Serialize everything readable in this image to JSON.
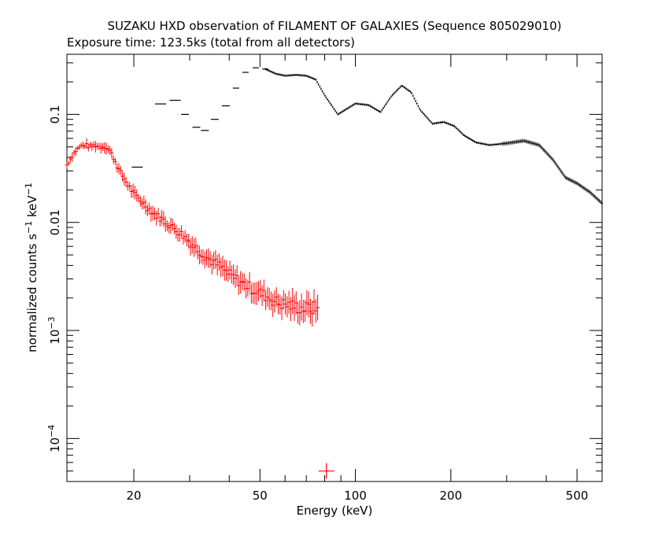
{
  "chart_data": {
    "type": "scatter",
    "title": "SUZAKU HXD observation of FILAMENT OF GALAXIES (Sequence 805029010)",
    "subtitle": "Exposure time: 123.5ks (total from all detectors)",
    "xlabel": "Energy (keV)",
    "ylabel": {
      "base": "normalized counts s",
      "sup1": "−1",
      "mid": " keV",
      "sup2": "−1"
    },
    "x_scale": "log",
    "y_scale": "log",
    "xlim": [
      12.3,
      600
    ],
    "ylim": [
      4e-05,
      0.36
    ],
    "grid": false,
    "x_ticks": [
      {
        "value": 20,
        "label": "20"
      },
      {
        "value": 50,
        "label": "50"
      },
      {
        "value": 100,
        "label": "100"
      },
      {
        "value": 200,
        "label": "200"
      },
      {
        "value": 500,
        "label": "500"
      }
    ],
    "y_ticks": [
      {
        "value": 0.1,
        "label": "0.1"
      },
      {
        "value": 0.01,
        "label": "0.01"
      },
      {
        "value": 0.001,
        "base": "10",
        "exp": "−3"
      },
      {
        "value": 0.0001,
        "base": "10",
        "exp": "−4"
      }
    ],
    "colors": {
      "series1": "#000000",
      "series2": "#ff0000"
    },
    "series": [
      {
        "color": "#000000",
        "points": [
          [
            20.5,
            0.0325
          ],
          [
            24.3,
            0.125
          ],
          [
            27.0,
            0.135
          ],
          [
            29.0,
            0.1
          ],
          [
            31.5,
            0.076
          ],
          [
            33.5,
            0.071
          ],
          [
            36.0,
            0.09
          ],
          [
            39.0,
            0.12
          ],
          [
            42.0,
            0.175
          ],
          [
            45.0,
            0.245
          ],
          [
            48.5,
            0.27
          ],
          [
            52.0,
            0.263
          ],
          [
            56.0,
            0.238
          ],
          [
            60.0,
            0.228
          ],
          [
            65.0,
            0.232
          ],
          [
            70.0,
            0.228
          ],
          [
            75.0,
            0.21
          ],
          [
            80.0,
            0.15
          ],
          [
            88.0,
            0.1
          ],
          [
            100.0,
            0.126
          ],
          [
            110.0,
            0.122
          ],
          [
            120.0,
            0.105
          ],
          [
            130.0,
            0.148
          ],
          [
            140.0,
            0.185
          ],
          [
            150.0,
            0.16
          ],
          [
            160.0,
            0.11
          ],
          [
            175.0,
            0.082
          ],
          [
            190.0,
            0.085
          ],
          [
            205.0,
            0.078
          ],
          [
            220.0,
            0.064
          ],
          [
            240.0,
            0.055
          ],
          [
            265.0,
            0.052
          ],
          [
            300.0,
            0.054
          ],
          [
            340.0,
            0.057
          ],
          [
            380.0,
            0.052
          ],
          [
            420.0,
            0.038
          ],
          [
            460.0,
            0.026
          ],
          [
            500.0,
            0.023
          ],
          [
            550.0,
            0.019
          ],
          [
            600.0,
            0.015
          ]
        ]
      },
      {
        "color": "#ff0000",
        "points": [
          [
            12.3,
            0.034
          ],
          [
            12.7,
            0.04
          ],
          [
            13.1,
            0.046
          ],
          [
            13.6,
            0.051
          ],
          [
            14.1,
            0.052
          ],
          [
            14.6,
            0.05
          ],
          [
            15.1,
            0.052
          ],
          [
            15.6,
            0.05
          ],
          [
            16.2,
            0.051
          ],
          [
            16.8,
            0.046
          ],
          [
            17.4,
            0.038
          ],
          [
            18.0,
            0.03
          ],
          [
            18.7,
            0.025
          ],
          [
            19.4,
            0.021
          ],
          [
            20.1,
            0.018
          ],
          [
            21.0,
            0.016
          ],
          [
            22.0,
            0.014
          ],
          [
            23.1,
            0.012
          ],
          [
            24.3,
            0.011
          ],
          [
            25.5,
            0.0098
          ],
          [
            26.8,
            0.0088
          ],
          [
            28.3,
            0.0078
          ],
          [
            30.0,
            0.0066
          ],
          [
            32.0,
            0.0055
          ],
          [
            34.5,
            0.0046
          ],
          [
            37.0,
            0.004
          ],
          [
            40.0,
            0.0033
          ],
          [
            43.5,
            0.0028
          ],
          [
            47.5,
            0.0024
          ],
          [
            52.0,
            0.0021
          ],
          [
            57.0,
            0.0018
          ],
          [
            62.5,
            0.0017
          ],
          [
            68.0,
            0.0016
          ],
          [
            73.0,
            0.0016
          ],
          [
            76.0,
            0.0016
          ],
          [
            81.0,
            5e-05
          ]
        ]
      }
    ]
  }
}
